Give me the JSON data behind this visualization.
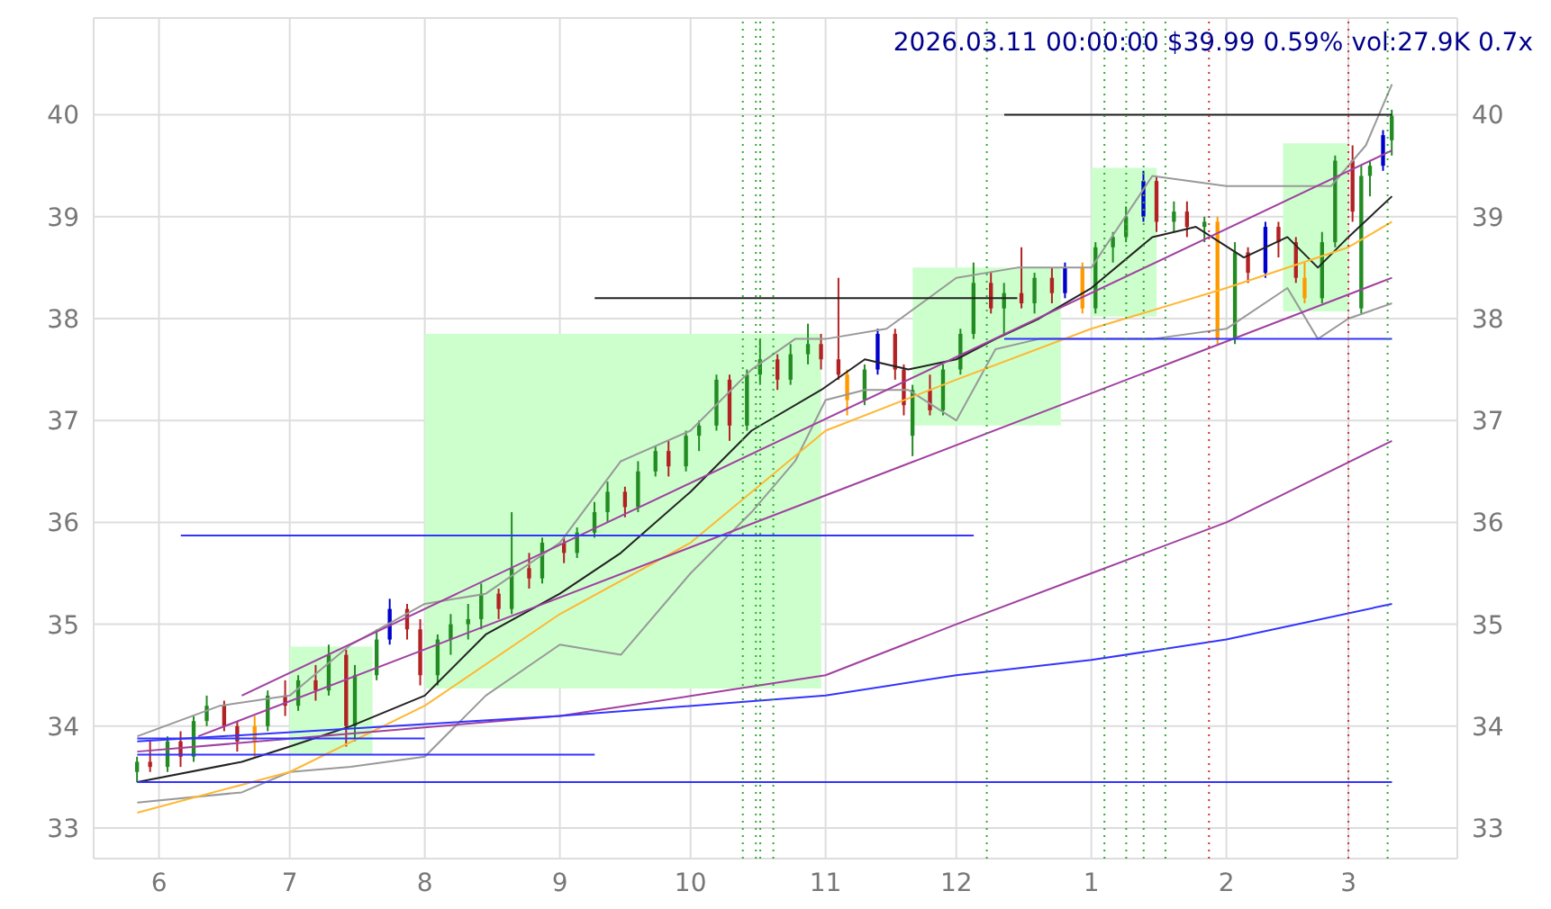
{
  "chart_data": {
    "type": "candlestick",
    "title": "2026.03.11 00:00:00 $39.99 0.59% vol:27.9K 0.7x",
    "x": [
      "2025-05-27",
      "2025-05-30",
      "2025-06-03",
      "2025-06-06",
      "2025-06-09",
      "2025-06-12",
      "2025-06-16",
      "2025-06-19",
      "2025-06-23",
      "2025-06-26",
      "2025-06-30",
      "2025-07-03",
      "2025-07-07",
      "2025-07-10",
      "2025-07-14",
      "2025-07-16",
      "2025-07-21",
      "2025-07-24",
      "2025-07-28",
      "2025-07-31",
      "2025-08-04",
      "2025-08-07",
      "2025-08-11",
      "2025-08-14",
      "2025-08-18",
      "2025-08-21",
      "2025-08-25",
      "2025-08-28",
      "2025-09-02",
      "2025-09-05",
      "2025-09-09",
      "2025-09-12",
      "2025-09-16",
      "2025-09-19",
      "2025-09-23",
      "2025-09-26",
      "2025-09-30",
      "2025-10-03",
      "2025-10-07",
      "2025-10-10",
      "2025-10-14",
      "2025-10-17",
      "2025-10-21",
      "2025-10-24",
      "2025-10-28",
      "2025-10-31",
      "2025-11-04",
      "2025-11-06",
      "2025-11-10",
      "2025-11-13",
      "2025-11-17",
      "2025-11-19",
      "2025-11-21",
      "2025-11-25",
      "2025-11-28",
      "2025-12-02",
      "2025-12-05",
      "2025-12-09",
      "2025-12-12",
      "2025-12-16",
      "2025-12-19",
      "2025-12-23",
      "2025-12-26",
      "2025-12-30",
      "2026-01-02",
      "2026-01-06",
      "2026-01-09",
      "2026-01-13",
      "2026-01-16",
      "2026-01-20",
      "2026-01-23",
      "2026-01-27",
      "2026-01-30",
      "2026-02-03",
      "2026-02-06",
      "2026-02-10",
      "2026-02-13",
      "2026-02-17",
      "2026-02-19",
      "2026-02-23",
      "2026-02-26",
      "2026-03-02",
      "2026-03-04",
      "2026-03-06",
      "2026-03-09",
      "2026-03-11"
    ],
    "ohlc": [
      [
        33.55,
        33.7,
        33.45,
        33.65
      ],
      [
        33.65,
        33.85,
        33.55,
        33.6
      ],
      [
        33.6,
        33.9,
        33.55,
        33.85
      ],
      [
        33.85,
        33.95,
        33.6,
        33.7
      ],
      [
        33.7,
        34.1,
        33.65,
        34.05
      ],
      [
        34.05,
        34.3,
        34.0,
        34.2
      ],
      [
        34.2,
        34.25,
        33.95,
        34.0
      ],
      [
        34.0,
        34.05,
        33.75,
        33.85
      ],
      [
        33.85,
        34.1,
        33.7,
        34.0
      ],
      [
        34.0,
        34.35,
        33.95,
        34.3
      ],
      [
        34.3,
        34.45,
        34.1,
        34.2
      ],
      [
        34.2,
        34.5,
        34.15,
        34.45
      ],
      [
        34.45,
        34.6,
        34.25,
        34.35
      ],
      [
        34.35,
        34.8,
        34.3,
        34.7
      ],
      [
        34.7,
        34.75,
        33.8,
        34.0
      ],
      [
        34.0,
        34.6,
        33.85,
        34.5
      ],
      [
        34.5,
        34.95,
        34.45,
        34.85
      ],
      [
        34.85,
        35.25,
        34.8,
        35.15
      ],
      [
        35.15,
        35.2,
        34.85,
        34.95
      ],
      [
        34.95,
        35.05,
        34.4,
        34.5
      ],
      [
        34.5,
        34.9,
        34.4,
        34.85
      ],
      [
        34.85,
        35.1,
        34.7,
        35.0
      ],
      [
        35.0,
        35.2,
        34.85,
        35.05
      ],
      [
        35.05,
        35.4,
        34.95,
        35.3
      ],
      [
        35.3,
        35.35,
        35.05,
        35.15
      ],
      [
        35.15,
        36.1,
        35.1,
        35.55
      ],
      [
        35.55,
        35.7,
        35.35,
        35.45
      ],
      [
        35.45,
        35.85,
        35.4,
        35.8
      ],
      [
        35.8,
        35.85,
        35.6,
        35.7
      ],
      [
        35.7,
        35.95,
        35.65,
        35.9
      ],
      [
        35.9,
        36.2,
        35.85,
        36.1
      ],
      [
        36.1,
        36.4,
        36.0,
        36.3
      ],
      [
        36.3,
        36.35,
        36.05,
        36.15
      ],
      [
        36.15,
        36.6,
        36.1,
        36.5
      ],
      [
        36.5,
        36.75,
        36.45,
        36.7
      ],
      [
        36.7,
        36.8,
        36.45,
        36.55
      ],
      [
        36.55,
        36.9,
        36.5,
        36.85
      ],
      [
        36.85,
        37.0,
        36.7,
        36.95
      ],
      [
        36.95,
        37.45,
        36.9,
        37.4
      ],
      [
        37.4,
        37.45,
        36.8,
        36.95
      ],
      [
        36.95,
        37.5,
        36.9,
        37.45
      ],
      [
        37.45,
        37.8,
        37.35,
        37.6
      ],
      [
        37.6,
        37.65,
        37.3,
        37.4
      ],
      [
        37.4,
        37.75,
        37.35,
        37.65
      ],
      [
        37.65,
        37.95,
        37.55,
        37.75
      ],
      [
        37.75,
        37.85,
        37.5,
        37.6
      ],
      [
        37.6,
        38.4,
        37.4,
        37.45
      ],
      [
        37.45,
        37.5,
        37.05,
        37.2
      ],
      [
        37.2,
        37.55,
        37.15,
        37.5
      ],
      [
        37.5,
        37.9,
        37.45,
        37.85
      ],
      [
        37.85,
        37.9,
        37.4,
        37.5
      ],
      [
        37.5,
        37.55,
        37.05,
        37.15
      ],
      [
        36.85,
        37.35,
        36.65,
        37.3
      ],
      [
        37.3,
        37.45,
        37.05,
        37.1
      ],
      [
        37.1,
        37.55,
        37.05,
        37.5
      ],
      [
        37.5,
        37.9,
        37.45,
        37.85
      ],
      [
        37.85,
        38.55,
        37.8,
        38.35
      ],
      [
        38.35,
        38.45,
        38.05,
        38.1
      ],
      [
        38.1,
        38.35,
        37.85,
        38.25
      ],
      [
        38.25,
        38.7,
        38.1,
        38.15
      ],
      [
        38.15,
        38.45,
        38.05,
        38.4
      ],
      [
        38.4,
        38.5,
        38.15,
        38.25
      ],
      [
        38.25,
        38.55,
        38.2,
        38.5
      ],
      [
        38.5,
        38.55,
        38.05,
        38.1
      ],
      [
        38.1,
        38.75,
        38.05,
        38.7
      ],
      [
        38.7,
        38.85,
        38.55,
        38.8
      ],
      [
        38.8,
        39.1,
        38.75,
        39.0
      ],
      [
        39.0,
        39.45,
        38.95,
        39.35
      ],
      [
        39.35,
        39.4,
        38.85,
        38.95
      ],
      [
        38.95,
        39.15,
        38.85,
        39.05
      ],
      [
        39.05,
        39.15,
        38.8,
        38.9
      ],
      [
        38.9,
        39.0,
        38.75,
        38.95
      ],
      [
        38.95,
        39.0,
        37.75,
        37.8
      ],
      [
        37.8,
        38.75,
        37.75,
        38.65
      ],
      [
        38.65,
        38.7,
        38.35,
        38.45
      ],
      [
        38.45,
        38.95,
        38.4,
        38.9
      ],
      [
        38.9,
        38.95,
        38.6,
        38.75
      ],
      [
        38.75,
        38.8,
        38.35,
        38.4
      ],
      [
        38.4,
        38.55,
        38.15,
        38.2
      ],
      [
        38.2,
        38.85,
        38.15,
        38.75
      ],
      [
        38.75,
        39.6,
        38.7,
        39.55
      ],
      [
        39.55,
        39.7,
        38.95,
        39.05
      ],
      [
        38.1,
        39.5,
        38.05,
        39.4
      ],
      [
        39.4,
        39.55,
        39.2,
        39.5
      ],
      [
        39.5,
        39.85,
        39.45,
        39.8
      ],
      [
        39.75,
        40.05,
        39.6,
        39.99
      ]
    ],
    "colors": [
      "#228b22",
      "#b22222",
      "#228b22",
      "#b22222",
      "#228b22",
      "#228b22",
      "#b22222",
      "#b22222",
      "#ff9900",
      "#228b22",
      "#b22222",
      "#228b22",
      "#b22222",
      "#228b22",
      "#b22222",
      "#228b22",
      "#228b22",
      "#0000cc",
      "#b22222",
      "#b22222",
      "#228b22",
      "#228b22",
      "#228b22",
      "#228b22",
      "#b22222",
      "#228b22",
      "#b22222",
      "#228b22",
      "#b22222",
      "#228b22",
      "#228b22",
      "#228b22",
      "#b22222",
      "#228b22",
      "#228b22",
      "#b22222",
      "#228b22",
      "#228b22",
      "#228b22",
      "#b22222",
      "#228b22",
      "#228b22",
      "#b22222",
      "#228b22",
      "#228b22",
      "#b22222",
      "#b22222",
      "#ff9900",
      "#228b22",
      "#0000cc",
      "#b22222",
      "#b22222",
      "#228b22",
      "#b22222",
      "#228b22",
      "#228b22",
      "#228b22",
      "#b22222",
      "#228b22",
      "#b22222",
      "#228b22",
      "#b22222",
      "#0000cc",
      "#ff9900",
      "#228b22",
      "#228b22",
      "#228b22",
      "#0000cc",
      "#b22222",
      "#228b22",
      "#b22222",
      "#228b22",
      "#ff9900",
      "#228b22",
      "#b22222",
      "#0000cc",
      "#b22222",
      "#b22222",
      "#ff9900",
      "#228b22",
      "#228b22",
      "#b22222",
      "#228b22",
      "#228b22",
      "#0000cc",
      "#228b22"
    ],
    "xlim": [
      "2025-05-17",
      "2026-03-26"
    ],
    "xticks": [
      {
        "value": "2025-06-01",
        "label": "6"
      },
      {
        "value": "2025-07-01",
        "label": "7"
      },
      {
        "value": "2025-08-01",
        "label": "8"
      },
      {
        "value": "2025-09-01",
        "label": "9"
      },
      {
        "value": "2025-10-01",
        "label": "10"
      },
      {
        "value": "2025-11-01",
        "label": "11"
      },
      {
        "value": "2025-12-01",
        "label": "12"
      },
      {
        "value": "2026-01-01",
        "label": "1"
      },
      {
        "value": "2026-02-01",
        "label": "2"
      },
      {
        "value": "2026-03-01",
        "label": "3"
      }
    ],
    "ylim": [
      32.7,
      40.95
    ],
    "yticks": [
      33,
      34,
      35,
      36,
      37,
      38,
      39,
      40
    ],
    "y2lim": [
      32.7,
      40.95
    ],
    "y2ticks": [
      33,
      34,
      35,
      36,
      37,
      38,
      39,
      40
    ],
    "grid": true,
    "legend": false,
    "series": [
      {
        "type": "area",
        "x": [
          "2025-07-01",
          "2025-07-20"
        ],
        "values": [
          null,
          null
        ],
        "lower": [
          33.72,
          33.72
        ],
        "upper": [
          34.78,
          34.78
        ],
        "color": "#ccffcc"
      },
      {
        "type": "area",
        "x": [
          "2025-08-01",
          "2025-10-31"
        ],
        "values": [
          null,
          null
        ],
        "lower": [
          34.37,
          34.37
        ],
        "upper": [
          37.85,
          37.85
        ],
        "color": "#ccffcc"
      },
      {
        "type": "area",
        "x": [
          "2025-11-21",
          "2025-12-25"
        ],
        "values": [
          null,
          null
        ],
        "lower": [
          36.95,
          36.95
        ],
        "upper": [
          38.5,
          38.5
        ],
        "color": "#ccffcc"
      },
      {
        "type": "area",
        "x": [
          "2026-01-01",
          "2026-01-16"
        ],
        "values": [
          null,
          null
        ],
        "lower": [
          38.02,
          38.02
        ],
        "upper": [
          39.48,
          39.48
        ],
        "color": "#ccffcc"
      },
      {
        "type": "area",
        "x": [
          "2026-02-14",
          "2026-03-01"
        ],
        "values": [
          null,
          null
        ],
        "lower": [
          38.07,
          38.07
        ],
        "upper": [
          39.72,
          39.72
        ],
        "color": "#ccffcc"
      },
      {
        "type": "line",
        "x": [
          "2025-05-27",
          "2025-06-15",
          "2025-07-01",
          "2025-07-15",
          "2025-08-01",
          "2025-08-15",
          "2025-09-01",
          "2025-09-15",
          "2025-10-01",
          "2025-10-15",
          "2025-10-25",
          "2025-11-01",
          "2025-11-15",
          "2025-12-01",
          "2025-12-15",
          "2026-01-01",
          "2026-01-15",
          "2026-02-01",
          "2026-02-15",
          "2026-02-25",
          "2026-03-05",
          "2026-03-11"
        ],
        "values": [
          33.9,
          34.2,
          34.3,
          34.8,
          35.2,
          35.3,
          35.8,
          36.6,
          36.9,
          37.5,
          37.8,
          37.8,
          37.9,
          38.4,
          38.5,
          38.5,
          39.4,
          39.3,
          39.3,
          39.3,
          39.7,
          40.3
        ],
        "color": "#999999"
      },
      {
        "type": "line",
        "x": [
          "2025-05-27",
          "2025-06-20",
          "2025-07-01",
          "2025-07-15",
          "2025-08-01",
          "2025-08-15",
          "2025-09-01",
          "2025-09-15",
          "2025-10-01",
          "2025-10-15",
          "2025-10-25",
          "2025-11-01",
          "2025-11-10",
          "2025-11-20",
          "2025-12-01",
          "2025-12-10",
          "2025-12-20",
          "2026-01-01",
          "2026-01-15",
          "2026-02-01",
          "2026-02-15",
          "2026-02-22",
          "2026-03-01",
          "2026-03-11"
        ],
        "values": [
          33.25,
          33.35,
          33.55,
          33.6,
          33.7,
          34.3,
          34.8,
          34.7,
          35.5,
          36.1,
          36.6,
          37.2,
          37.3,
          37.3,
          37.0,
          37.7,
          37.8,
          37.8,
          37.8,
          37.9,
          38.3,
          37.8,
          38.0,
          38.15
        ],
        "color": "#999999"
      },
      {
        "type": "line",
        "x": [
          "2025-05-27",
          "2025-06-20",
          "2025-07-01",
          "2025-07-15",
          "2025-08-01",
          "2025-08-15",
          "2025-09-01",
          "2025-09-15",
          "2025-10-01",
          "2025-10-15",
          "2025-10-31",
          "2025-11-10",
          "2025-11-20",
          "2025-12-01",
          "2025-12-10",
          "2025-12-20",
          "2026-01-01",
          "2026-01-15",
          "2026-01-25",
          "2026-02-05",
          "2026-02-15",
          "2026-02-22",
          "2026-03-01",
          "2026-03-11"
        ],
        "values": [
          33.45,
          33.65,
          33.8,
          34.0,
          34.3,
          34.9,
          35.3,
          35.7,
          36.3,
          36.9,
          37.3,
          37.6,
          37.5,
          37.6,
          37.8,
          38.0,
          38.3,
          38.8,
          38.9,
          38.6,
          38.8,
          38.5,
          38.8,
          39.2
        ],
        "color": "#222222"
      },
      {
        "type": "line",
        "x": [
          "2025-05-27",
          "2025-07-01",
          "2025-08-01",
          "2025-09-01",
          "2025-10-01",
          "2025-11-01",
          "2025-12-01",
          "2026-01-01",
          "2026-02-01",
          "2026-03-01",
          "2026-03-11"
        ],
        "values": [
          33.15,
          33.55,
          34.2,
          35.1,
          35.8,
          36.9,
          37.4,
          37.9,
          38.3,
          38.7,
          38.95
        ],
        "color": "#ffb733"
      },
      {
        "type": "line",
        "x": [
          "2025-06-20",
          "2026-03-11"
        ],
        "values": [
          34.3,
          39.65
        ],
        "color": "#a040a0"
      },
      {
        "type": "line",
        "x": [
          "2025-06-10",
          "2026-03-11"
        ],
        "values": [
          33.9,
          38.4
        ],
        "color": "#a040a0"
      },
      {
        "type": "line",
        "x": [
          "2025-05-27",
          "2025-09-01",
          "2025-11-01",
          "2025-12-01",
          "2026-01-01",
          "2026-02-01",
          "2026-03-11"
        ],
        "values": [
          33.75,
          34.1,
          34.5,
          35.0,
          35.5,
          36.0,
          36.8
        ],
        "color": "#a040a0"
      },
      {
        "type": "line",
        "x": [
          "2025-05-27",
          "2025-09-01",
          "2025-11-01",
          "2025-12-01",
          "2026-01-01",
          "2026-02-01",
          "2026-03-11"
        ],
        "values": [
          33.85,
          34.1,
          34.3,
          34.5,
          34.65,
          34.85,
          35.2
        ],
        "color": "#3333ff"
      },
      {
        "type": "line",
        "x": [
          "2025-12-12",
          "2026-03-11"
        ],
        "values": [
          40.0,
          40.0
        ],
        "color": "#222222"
      },
      {
        "type": "line",
        "x": [
          "2025-09-09",
          "2025-12-15"
        ],
        "values": [
          38.2,
          38.2
        ],
        "color": "#222222"
      },
      {
        "type": "line",
        "x": [
          "2025-06-06",
          "2025-12-05"
        ],
        "values": [
          35.87,
          35.87
        ],
        "color": "#3333ff"
      },
      {
        "type": "line",
        "x": [
          "2025-12-12",
          "2026-03-11"
        ],
        "values": [
          37.8,
          37.8
        ],
        "color": "#3333ff"
      },
      {
        "type": "line",
        "x": [
          "2025-05-27",
          "2025-09-09"
        ],
        "values": [
          33.72,
          33.72
        ],
        "color": "#3333ff"
      },
      {
        "type": "line",
        "x": [
          "2025-05-27",
          "2025-08-01"
        ],
        "values": [
          33.88,
          33.88
        ],
        "color": "#3333ff"
      },
      {
        "type": "line",
        "x": [
          "2025-05-27",
          "2026-03-11"
        ],
        "values": [
          33.45,
          33.45
        ],
        "color": "#3333ff"
      }
    ],
    "ref_lines": [
      {
        "axis": "x",
        "value": "2025-10-13",
        "color": "#33aa33",
        "line_style": "dotted"
      },
      {
        "axis": "x",
        "value": "2025-10-16",
        "color": "#33aa33",
        "line_style": "dotted"
      },
      {
        "axis": "x",
        "value": "2025-10-17",
        "color": "#33aa33",
        "line_style": "dotted"
      },
      {
        "axis": "x",
        "value": "2025-10-20",
        "color": "#33aa33",
        "line_style": "dotted"
      },
      {
        "axis": "x",
        "value": "2025-12-08",
        "color": "#33aa33",
        "line_style": "dotted"
      },
      {
        "axis": "x",
        "value": "2026-01-04",
        "color": "#33aa33",
        "line_style": "dotted"
      },
      {
        "axis": "x",
        "value": "2026-01-09",
        "color": "#33aa33",
        "line_style": "dotted"
      },
      {
        "axis": "x",
        "value": "2026-01-13",
        "color": "#33aa33",
        "line_style": "dotted"
      },
      {
        "axis": "x",
        "value": "2026-01-18",
        "color": "#33aa33",
        "line_style": "dotted"
      },
      {
        "axis": "x",
        "value": "2026-01-28",
        "color": "#cc3333",
        "line_style": "dotted"
      },
      {
        "axis": "x",
        "value": "2026-03-01",
        "color": "#cc3333",
        "line_style": "dotted"
      },
      {
        "axis": "x",
        "value": "2026-03-10",
        "color": "#33aa33",
        "line_style": "dotted"
      }
    ]
  }
}
